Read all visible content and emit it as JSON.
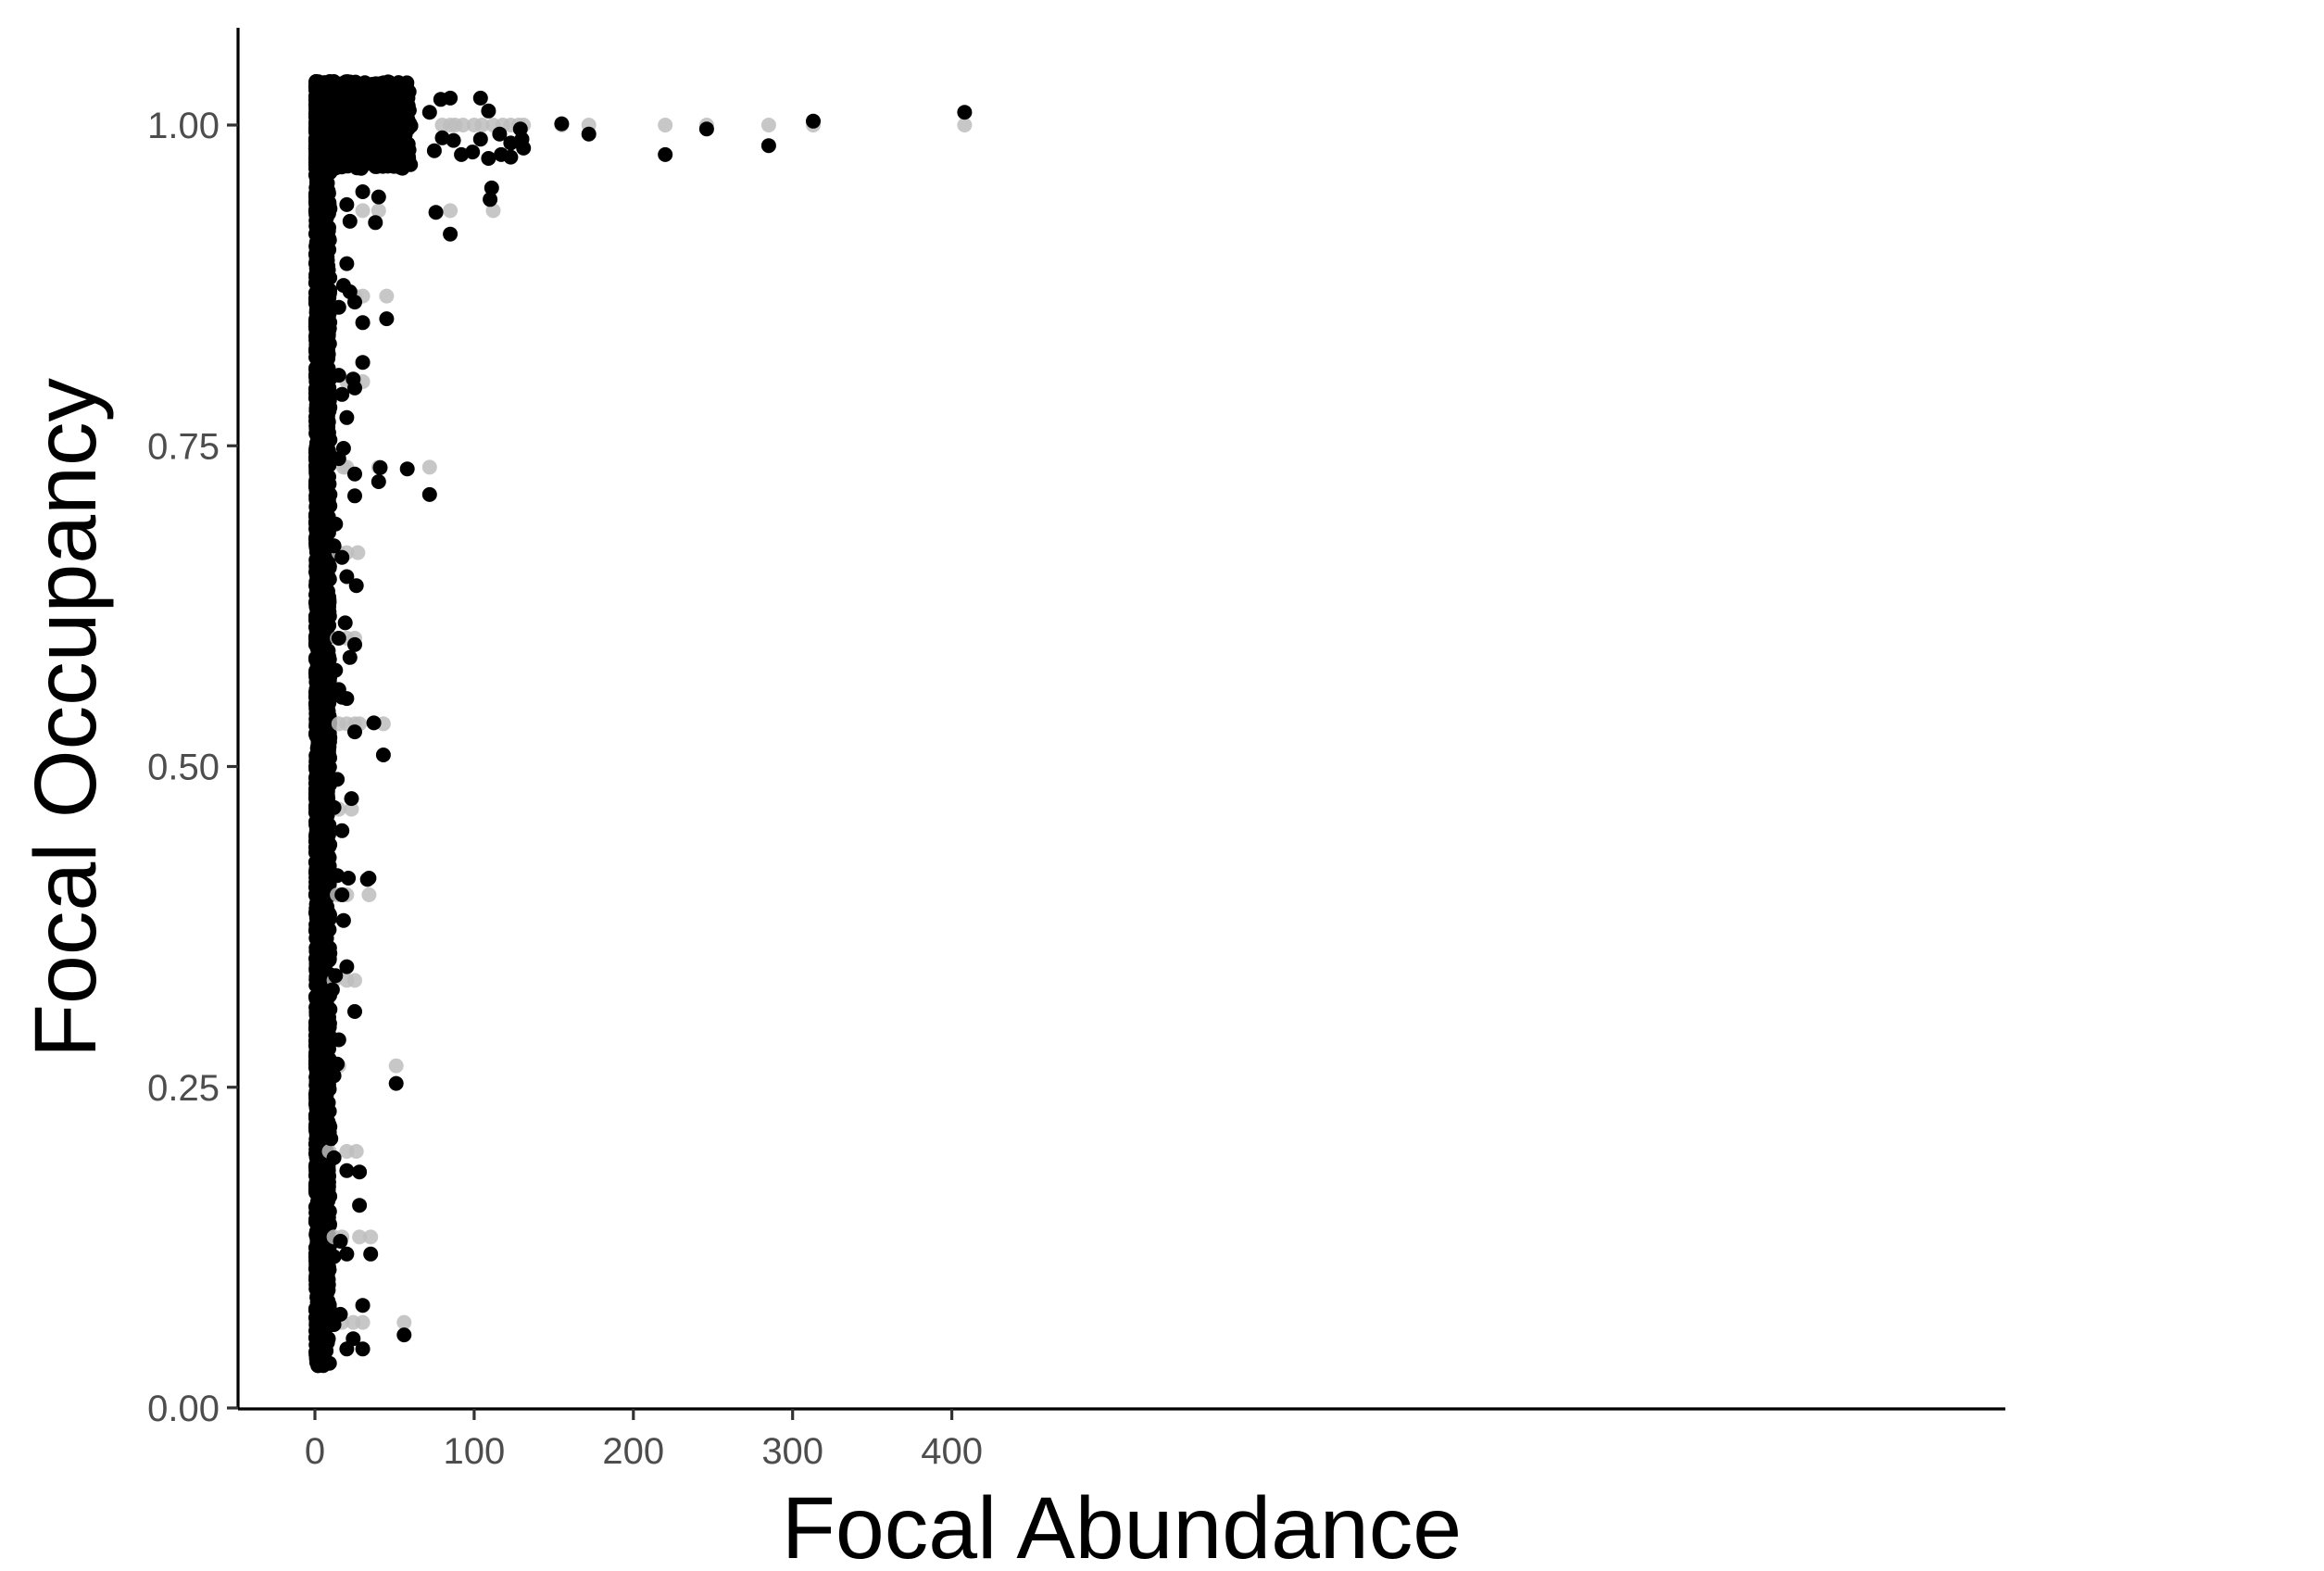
{
  "chart_data": {
    "type": "scatter",
    "title": "",
    "xlabel": "Focal Abundance",
    "ylabel": "Focal Occupancy",
    "xlim": [
      -19,
      428
    ],
    "ylim": [
      -0.01,
      1.075
    ],
    "x_ticks": [
      0,
      100,
      200,
      300,
      400
    ],
    "x_tick_labels": [
      "0",
      "100",
      "200",
      "300",
      "400"
    ],
    "y_ticks": [
      0.0,
      0.25,
      0.5,
      0.75,
      1.0
    ],
    "y_tick_labels": [
      "0.00",
      "0.25",
      "0.50",
      "0.75",
      "1.00"
    ],
    "grid": false,
    "legend": "none",
    "occupancy_levels": [
      0.0667,
      0.1333,
      0.2,
      0.2667,
      0.3333,
      0.4,
      0.4667,
      0.5333,
      0.6,
      0.6667,
      0.7333,
      0.8,
      0.8667,
      0.9333,
      1.0
    ],
    "series": [
      {
        "color": "#bdbdbd",
        "opacity": 0.85,
        "points": [
          [
            155,
            1.0
          ],
          [
            172,
            1.0
          ],
          [
            220,
            1.0
          ],
          [
            246,
            1.0
          ],
          [
            285,
            1.0
          ],
          [
            313,
            1.0
          ],
          [
            408,
            1.0
          ],
          [
            100,
            1.0
          ],
          [
            105,
            1.0
          ],
          [
            112,
            1.0
          ],
          [
            118,
            1.0
          ],
          [
            123,
            1.0
          ],
          [
            128,
            1.0
          ],
          [
            131,
            1.0
          ],
          [
            93,
            1.0
          ],
          [
            88,
            1.0
          ],
          [
            85,
            1.0
          ],
          [
            80,
            1.0
          ],
          [
            85,
            0.9333
          ],
          [
            112,
            0.9333
          ],
          [
            40,
            0.9333
          ],
          [
            30,
            0.9333
          ],
          [
            45,
            0.8667
          ],
          [
            30,
            0.8667
          ],
          [
            25,
            0.8667
          ],
          [
            30,
            0.8
          ],
          [
            25,
            0.8
          ],
          [
            20,
            0.8
          ],
          [
            72,
            0.7333
          ],
          [
            40,
            0.7333
          ],
          [
            20,
            0.7333
          ],
          [
            18,
            0.7333
          ],
          [
            27,
            0.6667
          ],
          [
            20,
            0.6667
          ],
          [
            15,
            0.6667
          ],
          [
            25,
            0.6
          ],
          [
            20,
            0.6
          ],
          [
            14,
            0.6
          ],
          [
            43,
            0.5333
          ],
          [
            28,
            0.5333
          ],
          [
            25,
            0.5333
          ],
          [
            20,
            0.5333
          ],
          [
            15,
            0.5333
          ],
          [
            23,
            0.4667
          ],
          [
            15,
            0.4667
          ],
          [
            34,
            0.4
          ],
          [
            20,
            0.4
          ],
          [
            18,
            0.4
          ],
          [
            14,
            0.4
          ],
          [
            25,
            0.3333
          ],
          [
            20,
            0.3333
          ],
          [
            12,
            0.3333
          ],
          [
            51,
            0.2667
          ],
          [
            15,
            0.2667
          ],
          [
            26,
            0.2
          ],
          [
            20,
            0.2
          ],
          [
            9,
            0.2
          ],
          [
            35,
            0.1333
          ],
          [
            28,
            0.1333
          ],
          [
            17,
            0.1333
          ],
          [
            12,
            0.1333
          ],
          [
            56,
            0.0667
          ],
          [
            30,
            0.0667
          ],
          [
            24,
            0.0667
          ],
          [
            17,
            0.0667
          ]
        ]
      },
      {
        "color": "#000000",
        "opacity": 1,
        "points": [
          [
            408,
            1.01
          ],
          [
            313,
            1.003
          ],
          [
            285,
            0.984
          ],
          [
            246,
            0.997
          ],
          [
            220,
            0.977
          ],
          [
            172,
            0.993
          ],
          [
            155,
            1.001
          ],
          [
            131,
            0.982
          ],
          [
            130,
            0.989
          ],
          [
            129,
            0.997
          ],
          [
            123,
            0.986
          ],
          [
            123,
            0.975
          ],
          [
            117,
            0.977
          ],
          [
            116,
            0.993
          ],
          [
            111,
            0.951
          ],
          [
            110,
            0.942
          ],
          [
            109,
            1.011
          ],
          [
            109,
            0.974
          ],
          [
            104,
            1.021
          ],
          [
            104,
            0.989
          ],
          [
            99,
            0.979
          ],
          [
            87,
            0.988
          ],
          [
            85,
            1.021
          ],
          [
            92,
            0.977
          ],
          [
            80,
            0.99
          ],
          [
            79,
            1.02
          ],
          [
            75,
            0.98
          ],
          [
            72,
            1.01
          ],
          [
            76,
            0.932
          ],
          [
            85,
            0.915
          ],
          [
            40,
            0.944
          ],
          [
            38,
            0.924
          ],
          [
            30,
            0.948
          ],
          [
            22,
            0.925
          ],
          [
            20,
            0.938
          ],
          [
            45,
            0.849
          ],
          [
            30,
            0.846
          ],
          [
            25,
            0.862
          ],
          [
            22,
            0.87
          ],
          [
            20,
            0.892
          ],
          [
            18,
            0.875
          ],
          [
            15,
            0.858
          ],
          [
            30,
            0.815
          ],
          [
            25,
            0.795
          ],
          [
            24,
            0.802
          ],
          [
            20,
            0.772
          ],
          [
            17,
            0.79
          ],
          [
            15,
            0.805
          ],
          [
            58,
            0.732
          ],
          [
            72,
            0.712
          ],
          [
            41,
            0.733
          ],
          [
            40,
            0.722
          ],
          [
            25,
            0.728
          ],
          [
            25,
            0.711
          ],
          [
            18,
            0.748
          ],
          [
            15,
            0.74
          ],
          [
            26,
            0.641
          ],
          [
            20,
            0.648
          ],
          [
            17,
            0.663
          ],
          [
            13,
            0.689
          ],
          [
            12,
            0.672
          ],
          [
            25,
            0.595
          ],
          [
            22,
            0.585
          ],
          [
            19,
            0.612
          ],
          [
            15,
            0.6
          ],
          [
            13,
            0.575
          ],
          [
            37,
            0.534
          ],
          [
            43,
            0.509
          ],
          [
            25,
            0.527
          ],
          [
            20,
            0.553
          ],
          [
            17,
            0.554
          ],
          [
            15,
            0.56
          ],
          [
            23,
            0.475
          ],
          [
            17,
            0.45
          ],
          [
            14,
            0.49
          ],
          [
            12,
            0.468
          ],
          [
            34,
            0.413
          ],
          [
            33,
            0.412
          ],
          [
            21,
            0.413
          ],
          [
            18,
            0.38
          ],
          [
            17,
            0.4
          ],
          [
            14,
            0.415
          ],
          [
            25,
            0.309
          ],
          [
            20,
            0.344
          ],
          [
            13,
            0.337
          ],
          [
            11,
            0.326
          ],
          [
            51,
            0.253
          ],
          [
            15,
            0.287
          ],
          [
            14,
            0.268
          ],
          [
            12,
            0.259
          ],
          [
            28,
            0.184
          ],
          [
            20,
            0.185
          ],
          [
            12,
            0.195
          ],
          [
            10,
            0.21
          ],
          [
            35,
            0.12
          ],
          [
            28,
            0.158
          ],
          [
            20,
            0.12
          ],
          [
            16,
            0.13
          ],
          [
            12,
            0.118
          ],
          [
            56,
            0.057
          ],
          [
            30,
            0.08
          ],
          [
            30,
            0.046
          ],
          [
            24,
            0.054
          ],
          [
            20,
            0.046
          ],
          [
            16,
            0.073
          ],
          [
            12,
            0.065
          ]
        ]
      }
    ]
  }
}
